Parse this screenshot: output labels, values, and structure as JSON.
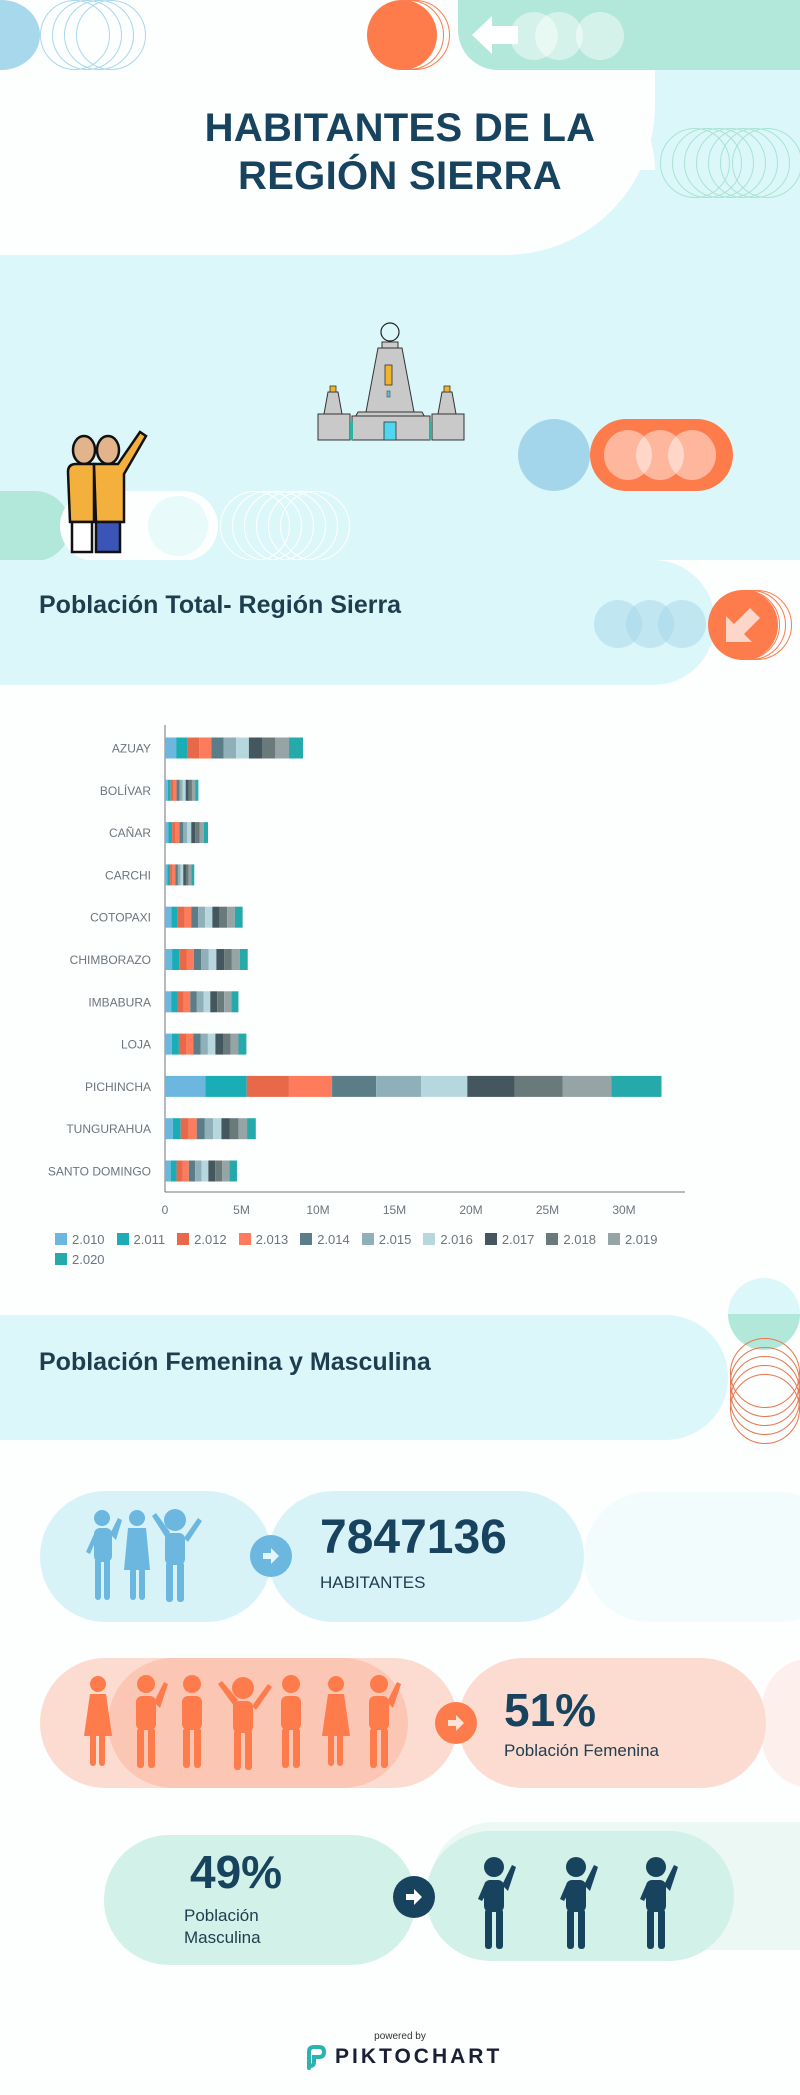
{
  "header": {
    "title_line1": "HABITANTES DE LA",
    "title_line2": "REGIÓN SIERRA"
  },
  "colors": {
    "navy": "#17435e",
    "light_cyan": "#dcf7f9",
    "mint": "#b2e8d9",
    "orange": "#fe7b4c",
    "light_orange": "#fcdcd1",
    "blue": "#6bb7e0"
  },
  "section_total": {
    "title": "Población Total- Región Sierra"
  },
  "chart_data": {
    "type": "bar",
    "orientation": "horizontal",
    "stacked": true,
    "title": "Población Total- Región Sierra",
    "xlabel": "",
    "ylabel": "",
    "xlim": [
      0,
      34000000
    ],
    "x_ticks": [
      {
        "value": 0,
        "label": "0"
      },
      {
        "value": 5000000,
        "label": "5M"
      },
      {
        "value": 10000000,
        "label": "10M"
      },
      {
        "value": 15000000,
        "label": "15M"
      },
      {
        "value": 20000000,
        "label": "20M"
      },
      {
        "value": 25000000,
        "label": "25M"
      },
      {
        "value": 30000000,
        "label": "30M"
      }
    ],
    "grid": false,
    "legend_position": "bottom",
    "categories": [
      "AZUAY",
      "BOLÍVAR",
      "CAÑAR",
      "CARCHI",
      "COTOPAXI",
      "CHIMBORAZO",
      "IMBABURA",
      "LOJA",
      "PICHINCHA",
      "TUNGURAHUA",
      "SANTO DOMINGO"
    ],
    "series": [
      {
        "name": "2.010",
        "color": "#6bb7e0",
        "values": [
          730000,
          185000,
          230000,
          166000,
          414000,
          463000,
          404000,
          451000,
          2640000,
          509000,
          372000
        ]
      },
      {
        "name": "2.011",
        "color": "#1aadb6",
        "values": [
          748000,
          188000,
          235000,
          167000,
          423000,
          468000,
          410000,
          458000,
          2700000,
          515000,
          383000
        ]
      },
      {
        "name": "2.012",
        "color": "#e8694a",
        "values": [
          765000,
          190000,
          240000,
          169000,
          433000,
          474000,
          416000,
          464000,
          2760000,
          521000,
          394000
        ]
      },
      {
        "name": "2.013",
        "color": "#fe7b5c",
        "values": [
          783000,
          193000,
          245000,
          170000,
          442000,
          480000,
          423000,
          470000,
          2820000,
          527000,
          405000
        ]
      },
      {
        "name": "2.014",
        "color": "#5b7d87",
        "values": [
          801000,
          196000,
          250000,
          172000,
          451000,
          486000,
          429000,
          477000,
          2880000,
          533000,
          416000
        ]
      },
      {
        "name": "2.015",
        "color": "#8fb0b8",
        "values": [
          819000,
          199000,
          256000,
          174000,
          461000,
          491000,
          436000,
          484000,
          2950000,
          539000,
          427000
        ]
      },
      {
        "name": "2.016",
        "color": "#b6d7de",
        "values": [
          837000,
          201000,
          261000,
          175000,
          471000,
          497000,
          443000,
          490000,
          3010000,
          546000,
          438000
        ]
      },
      {
        "name": "2.017",
        "color": "#44575e",
        "values": [
          856000,
          204000,
          266000,
          177000,
          480000,
          503000,
          450000,
          497000,
          3080000,
          552000,
          450000
        ]
      },
      {
        "name": "2.018",
        "color": "#6a7a7b",
        "values": [
          875000,
          206000,
          271000,
          179000,
          490000,
          509000,
          457000,
          503000,
          3140000,
          558000,
          461000
        ]
      },
      {
        "name": "2.019",
        "color": "#97a4a6",
        "values": [
          893000,
          209000,
          276000,
          181000,
          500000,
          515000,
          463000,
          510000,
          3200000,
          564000,
          473000
        ]
      },
      {
        "name": "2.020",
        "color": "#26a9aa",
        "values": [
          912000,
          211000,
          281000,
          183000,
          510000,
          520000,
          470000,
          516000,
          3270000,
          570000,
          485000
        ]
      }
    ]
  },
  "section_gender": {
    "title": "Población Femenina y Masculina"
  },
  "stats": {
    "total": {
      "value": "7847136",
      "label": "HABITANTES"
    },
    "female": {
      "value": "51%",
      "label": "Población Femenina"
    },
    "male": {
      "value": "49%",
      "label_line1": "Población",
      "label_line2": "Masculina"
    }
  },
  "footer": {
    "powered_by": "powered by",
    "brand": "PIKTOCHART"
  }
}
